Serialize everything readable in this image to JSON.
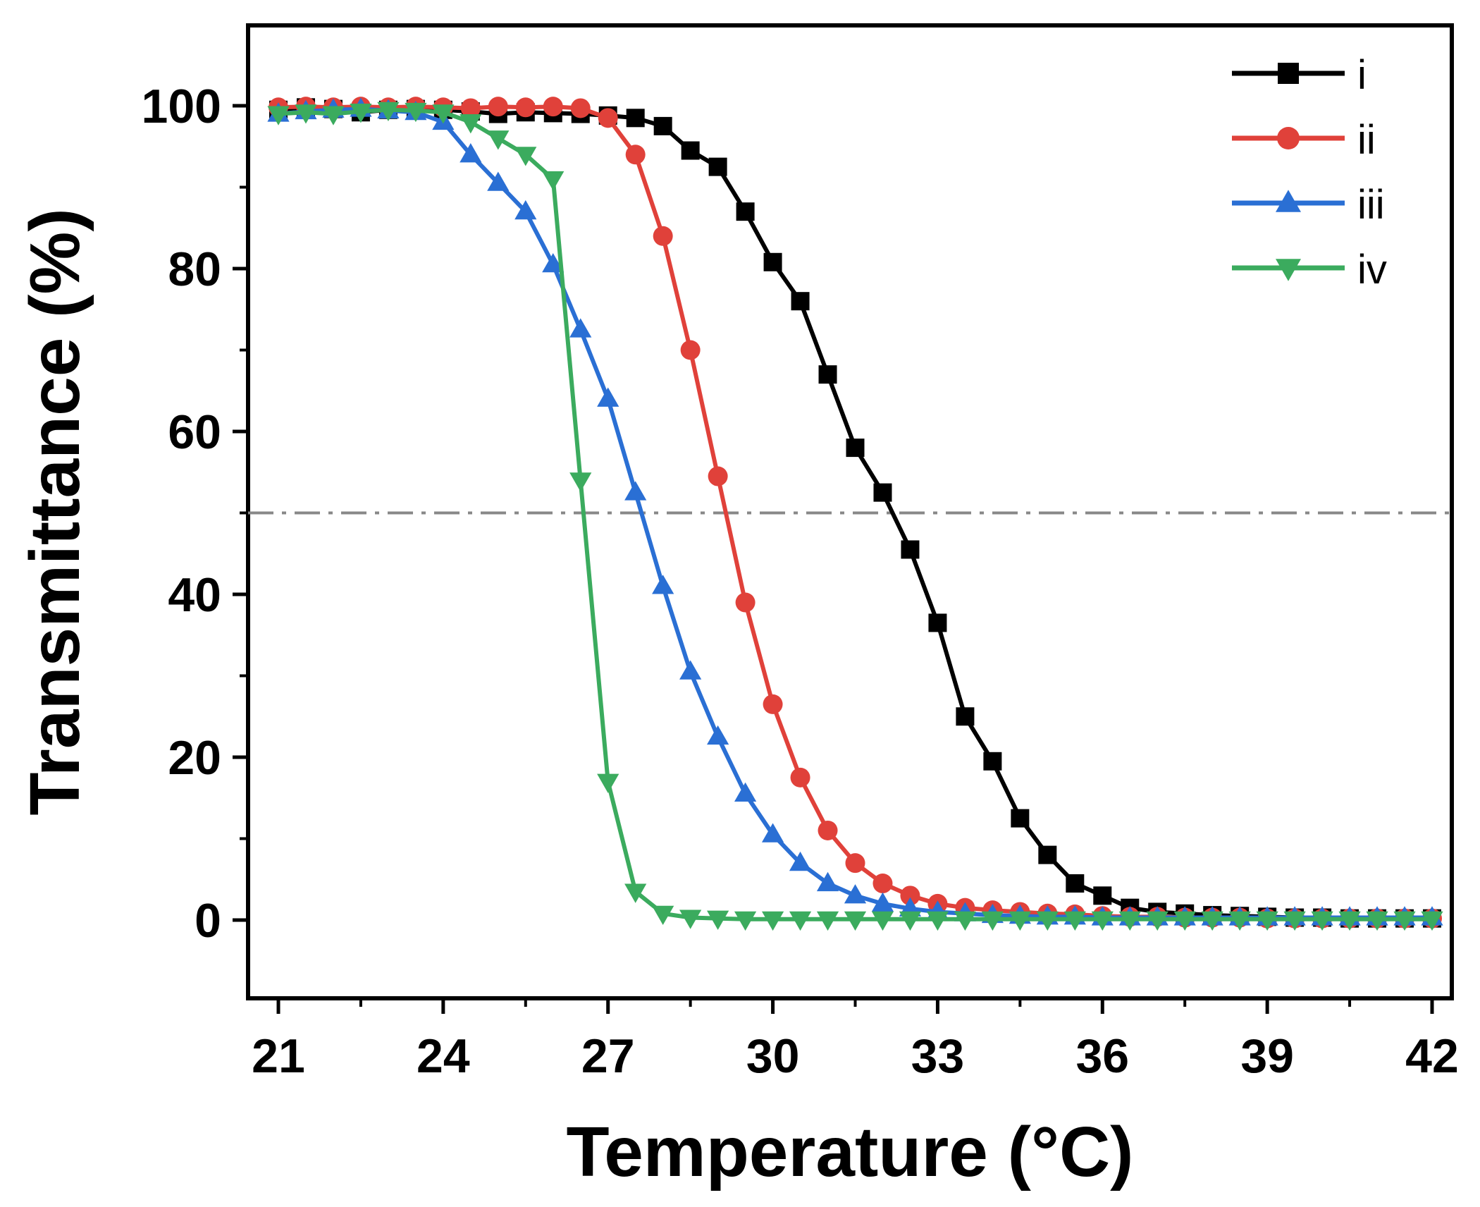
{
  "chart_data": {
    "type": "line",
    "title": "",
    "xlabel": "Temperature (°C)",
    "ylabel": "Transmittance (%)",
    "xlim": [
      20.5,
      42.5
    ],
    "ylim": [
      -10,
      110
    ],
    "xticks": [
      21,
      24,
      27,
      30,
      33,
      36,
      39,
      42
    ],
    "yticks": [
      0,
      20,
      40,
      60,
      80,
      100
    ],
    "xtick_labels": [
      "21",
      "24",
      "27",
      "30",
      "33",
      "36",
      "39",
      "42"
    ],
    "ytick_labels": [
      "0",
      "20",
      "40",
      "60",
      "80",
      "100"
    ],
    "reference_line": {
      "y": 50,
      "style": "dash-dot",
      "color": "#888888"
    },
    "legend_position": "top-right",
    "series": [
      {
        "name": "i",
        "color": "#000000",
        "marker": "square",
        "x": [
          21,
          21.5,
          22,
          22.5,
          23,
          23.5,
          24,
          24.5,
          25,
          25.5,
          26,
          26.5,
          27,
          27.5,
          28,
          28.5,
          29,
          29.5,
          30,
          30.5,
          31,
          31.5,
          32,
          32.5,
          33,
          33.5,
          34,
          34.5,
          35,
          35.5,
          36,
          36.5,
          37,
          37.5,
          38,
          38.5,
          39,
          39.5,
          40,
          40.5,
          41,
          41.5,
          42
        ],
        "y": [
          99.5,
          99.8,
          99.6,
          99.2,
          99.5,
          99.6,
          99.5,
          99.3,
          99.0,
          99.2,
          99.1,
          99.0,
          98.8,
          98.5,
          97.5,
          94.5,
          92.5,
          87.0,
          80.8,
          76.0,
          67.0,
          58.0,
          52.5,
          45.5,
          36.5,
          25.0,
          19.5,
          12.5,
          8.0,
          4.5,
          3.0,
          1.5,
          1.0,
          0.8,
          0.6,
          0.5,
          0.4,
          0.3,
          0.3,
          0.2,
          0.2,
          0.2,
          0.2
        ]
      },
      {
        "name": "ii",
        "color": "#e0413a",
        "marker": "circle",
        "x": [
          21,
          21.5,
          22,
          22.5,
          23,
          23.5,
          24,
          24.5,
          25,
          25.5,
          26,
          26.5,
          27,
          27.5,
          28,
          28.5,
          29,
          29.5,
          30,
          30.5,
          31,
          31.5,
          32,
          32.5,
          33,
          33.5,
          34,
          34.5,
          35,
          35.5,
          36,
          36.5,
          37,
          37.5,
          38,
          38.5,
          39,
          39.5,
          40,
          40.5,
          41,
          41.5,
          42
        ],
        "y": [
          99.8,
          99.9,
          99.8,
          99.9,
          99.8,
          99.9,
          99.8,
          99.7,
          99.9,
          99.8,
          99.9,
          99.7,
          98.5,
          94.0,
          84.0,
          70.0,
          54.5,
          39.0,
          26.5,
          17.5,
          11.0,
          7.0,
          4.5,
          3.0,
          2.0,
          1.5,
          1.2,
          1.0,
          0.8,
          0.7,
          0.5,
          0.4,
          0.4,
          0.3,
          0.3,
          0.3,
          0.2,
          0.2,
          0.2,
          0.2,
          0.2,
          0.2,
          0.2
        ]
      },
      {
        "name": "iii",
        "color": "#2a6fd4",
        "marker": "triangle-up",
        "x": [
          21,
          21.5,
          22,
          22.5,
          23,
          23.5,
          24,
          24.5,
          25,
          25.5,
          26,
          26.5,
          27,
          27.5,
          28,
          28.5,
          29,
          29.5,
          30,
          30.5,
          31,
          31.5,
          32,
          32.5,
          33,
          33.5,
          34,
          34.5,
          35,
          35.5,
          36,
          36.5,
          37,
          37.5,
          38,
          38.5,
          39,
          39.5,
          40,
          40.5,
          41,
          41.5,
          42
        ],
        "y": [
          99.0,
          99.3,
          99.5,
          99.6,
          99.4,
          99.2,
          98.0,
          94.0,
          90.5,
          87.0,
          80.5,
          72.5,
          64.0,
          52.5,
          41.0,
          30.5,
          22.5,
          15.5,
          10.5,
          7.0,
          4.5,
          3.0,
          2.0,
          1.4,
          1.0,
          0.8,
          0.6,
          0.5,
          0.4,
          0.4,
          0.3,
          0.3,
          0.3,
          0.3,
          0.3,
          0.3,
          0.3,
          0.3,
          0.3,
          0.3,
          0.3,
          0.3,
          0.3
        ]
      },
      {
        "name": "iv",
        "color": "#3bab5e",
        "marker": "triangle-down",
        "x": [
          21,
          21.5,
          22,
          22.5,
          23,
          23.5,
          24,
          24.5,
          25,
          25.5,
          26,
          26.5,
          27,
          27.5,
          28,
          28.5,
          29,
          29.5,
          30,
          30.5,
          31,
          31.5,
          32,
          32.5,
          33,
          33.5,
          34,
          34.5,
          35,
          35.5,
          36,
          36.5,
          37,
          37.5,
          38,
          38.5,
          39,
          39.5,
          40,
          40.5,
          41,
          41.5,
          42
        ],
        "y": [
          99.0,
          99.2,
          99.0,
          99.3,
          99.5,
          99.4,
          99.2,
          98.0,
          96.0,
          94.0,
          91.0,
          54.0,
          17.0,
          3.5,
          0.8,
          0.3,
          0.2,
          0.1,
          0.1,
          0.1,
          0.1,
          0.1,
          0.1,
          0.1,
          0.1,
          0.1,
          0.1,
          0.1,
          0.1,
          0.1,
          0.1,
          0.1,
          0.1,
          0.1,
          0.1,
          0.1,
          0.1,
          0.1,
          0.1,
          0.1,
          0.1,
          0.1,
          0.1
        ]
      }
    ]
  }
}
